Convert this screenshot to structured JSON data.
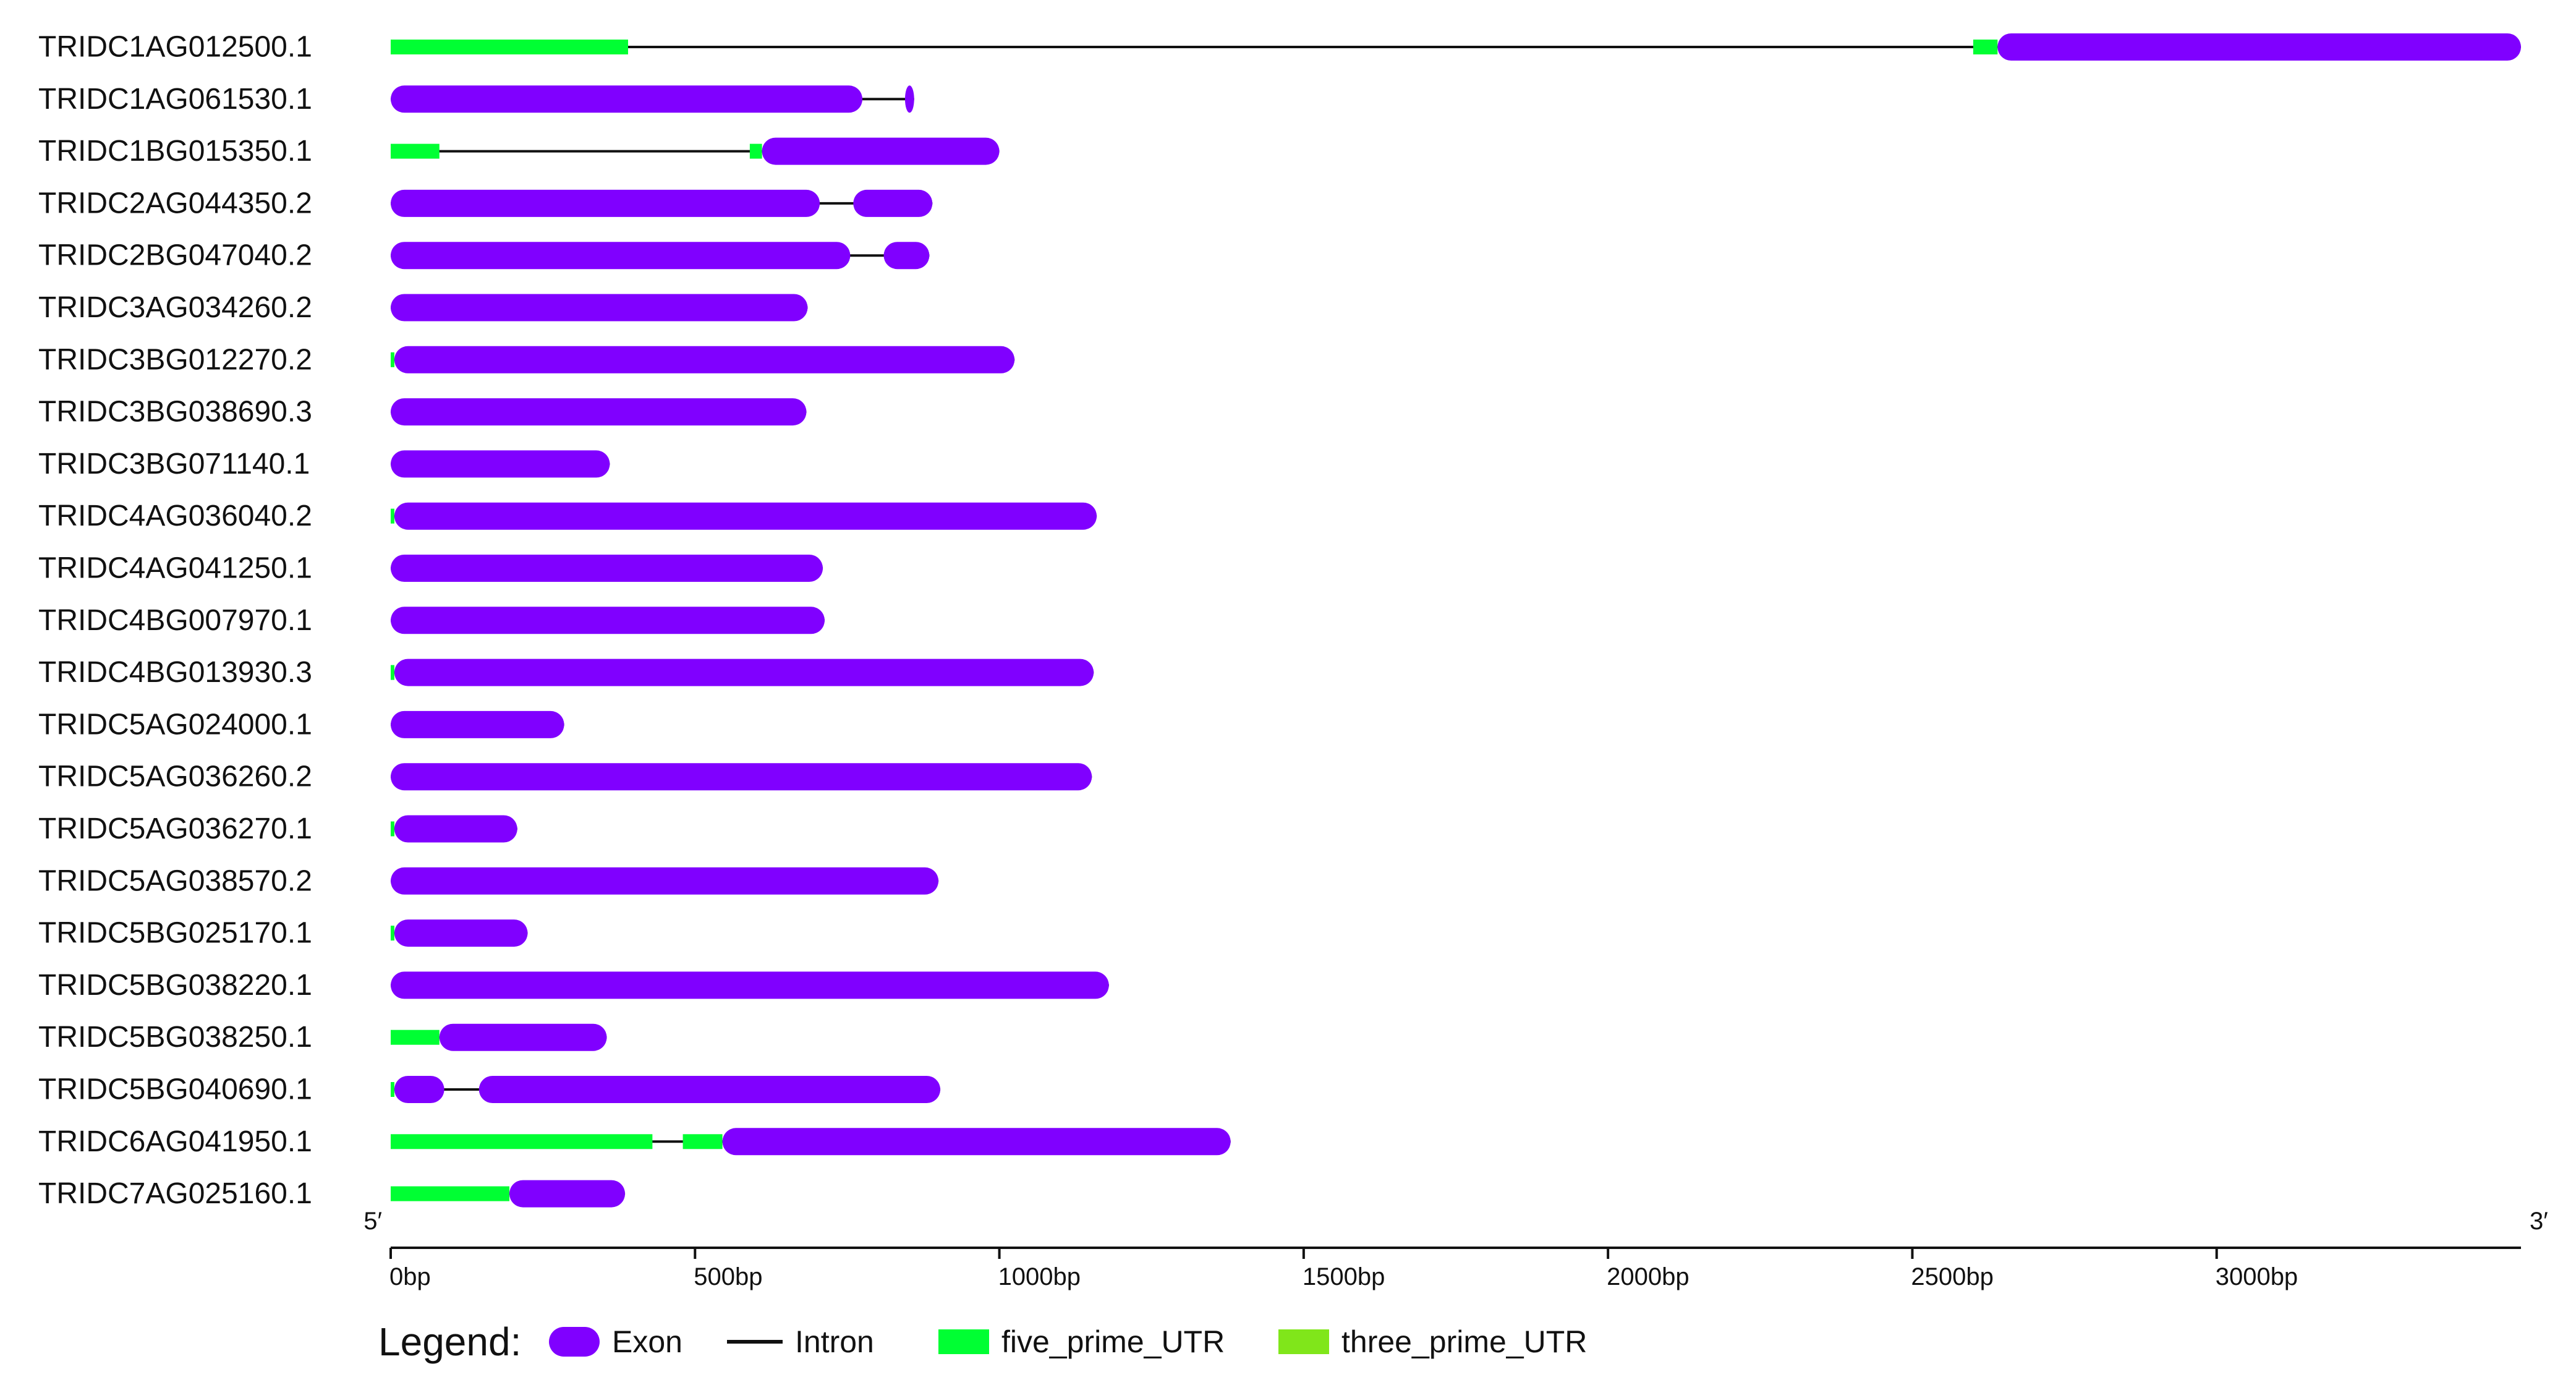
{
  "colors": {
    "exon": "#8000ff",
    "intron": "#111111",
    "five_prime_UTR": "#00ff33",
    "three_prime_UTR": "#80e61a",
    "axis": "#111111"
  },
  "axis": {
    "start_label": "5′",
    "end_label": "3′",
    "min_bp": 0,
    "max_bp": 3500,
    "ticks": [
      {
        "bp": 0,
        "label": "0bp"
      },
      {
        "bp": 500,
        "label": "500bp"
      },
      {
        "bp": 1000,
        "label": "1000bp"
      },
      {
        "bp": 1500,
        "label": "1500bp"
      },
      {
        "bp": 2000,
        "label": "2000bp"
      },
      {
        "bp": 2500,
        "label": "2500bp"
      },
      {
        "bp": 3000,
        "label": "3000bp"
      }
    ]
  },
  "legend": {
    "title": "Legend:",
    "items": [
      {
        "label": "Exon",
        "kind": "exon"
      },
      {
        "label": "Intron",
        "kind": "intron"
      },
      {
        "label": "five_prime_UTR",
        "kind": "five_prime_UTR"
      },
      {
        "label": "three_prime_UTR",
        "kind": "three_prime_UTR"
      }
    ]
  },
  "genes": [
    {
      "name": "TRIDC1AG012500.1",
      "length": 3500,
      "features": [
        {
          "type": "five_prime_UTR",
          "start": 0,
          "end": 390
        },
        {
          "type": "five_prime_UTR",
          "start": 2600,
          "end": 2640
        },
        {
          "type": "exon",
          "start": 2640,
          "end": 3500
        }
      ]
    },
    {
      "name": "TRIDC1AG061530.1",
      "length": 860,
      "features": [
        {
          "type": "exon",
          "start": 0,
          "end": 775
        },
        {
          "type": "exon",
          "start": 845,
          "end": 860
        }
      ]
    },
    {
      "name": "TRIDC1BG015350.1",
      "length": 1000,
      "features": [
        {
          "type": "five_prime_UTR",
          "start": 0,
          "end": 80
        },
        {
          "type": "five_prime_UTR",
          "start": 590,
          "end": 610
        },
        {
          "type": "exon",
          "start": 610,
          "end": 1000
        }
      ]
    },
    {
      "name": "TRIDC2AG044350.2",
      "length": 890,
      "features": [
        {
          "type": "exon",
          "start": 0,
          "end": 705
        },
        {
          "type": "exon",
          "start": 760,
          "end": 890
        }
      ]
    },
    {
      "name": "TRIDC2BG047040.2",
      "length": 885,
      "features": [
        {
          "type": "exon",
          "start": 0,
          "end": 755
        },
        {
          "type": "exon",
          "start": 810,
          "end": 885
        }
      ]
    },
    {
      "name": "TRIDC3AG034260.2",
      "length": 685,
      "features": [
        {
          "type": "exon",
          "start": 0,
          "end": 685
        }
      ]
    },
    {
      "name": "TRIDC3BG012270.2",
      "length": 1025,
      "features": [
        {
          "type": "five_prime_UTR",
          "start": 0,
          "end": 6
        },
        {
          "type": "exon",
          "start": 6,
          "end": 1025
        }
      ]
    },
    {
      "name": "TRIDC3BG038690.3",
      "length": 683,
      "features": [
        {
          "type": "exon",
          "start": 0,
          "end": 683
        }
      ]
    },
    {
      "name": "TRIDC3BG071140.1",
      "length": 360,
      "features": [
        {
          "type": "exon",
          "start": 0,
          "end": 360
        }
      ]
    },
    {
      "name": "TRIDC4AG036040.2",
      "length": 1160,
      "features": [
        {
          "type": "five_prime_UTR",
          "start": 0,
          "end": 6
        },
        {
          "type": "exon",
          "start": 6,
          "end": 1160
        }
      ]
    },
    {
      "name": "TRIDC4AG041250.1",
      "length": 710,
      "features": [
        {
          "type": "exon",
          "start": 0,
          "end": 710
        }
      ]
    },
    {
      "name": "TRIDC4BG007970.1",
      "length": 713,
      "features": [
        {
          "type": "exon",
          "start": 0,
          "end": 713
        }
      ]
    },
    {
      "name": "TRIDC4BG013930.3",
      "length": 1155,
      "features": [
        {
          "type": "five_prime_UTR",
          "start": 0,
          "end": 6
        },
        {
          "type": "exon",
          "start": 6,
          "end": 1155
        }
      ]
    },
    {
      "name": "TRIDC5AG024000.1",
      "length": 285,
      "features": [
        {
          "type": "exon",
          "start": 0,
          "end": 285
        }
      ]
    },
    {
      "name": "TRIDC5AG036260.2",
      "length": 1152,
      "features": [
        {
          "type": "exon",
          "start": 0,
          "end": 1152
        }
      ]
    },
    {
      "name": "TRIDC5AG036270.1",
      "length": 208,
      "features": [
        {
          "type": "five_prime_UTR",
          "start": 0,
          "end": 6
        },
        {
          "type": "exon",
          "start": 6,
          "end": 208
        }
      ]
    },
    {
      "name": "TRIDC5AG038570.2",
      "length": 900,
      "features": [
        {
          "type": "exon",
          "start": 0,
          "end": 900
        }
      ]
    },
    {
      "name": "TRIDC5BG025170.1",
      "length": 225,
      "features": [
        {
          "type": "five_prime_UTR",
          "start": 0,
          "end": 6
        },
        {
          "type": "exon",
          "start": 6,
          "end": 225
        }
      ]
    },
    {
      "name": "TRIDC5BG038220.1",
      "length": 1180,
      "features": [
        {
          "type": "exon",
          "start": 0,
          "end": 1180
        }
      ]
    },
    {
      "name": "TRIDC5BG038250.1",
      "length": 355,
      "features": [
        {
          "type": "five_prime_UTR",
          "start": 0,
          "end": 80
        },
        {
          "type": "exon",
          "start": 80,
          "end": 355
        }
      ]
    },
    {
      "name": "TRIDC5BG040690.1",
      "length": 903,
      "features": [
        {
          "type": "five_prime_UTR",
          "start": 0,
          "end": 6
        },
        {
          "type": "exon",
          "start": 6,
          "end": 88
        },
        {
          "type": "exon",
          "start": 145,
          "end": 903
        }
      ]
    },
    {
      "name": "TRIDC6AG041950.1",
      "length": 1380,
      "features": [
        {
          "type": "five_prime_UTR",
          "start": 0,
          "end": 430
        },
        {
          "type": "five_prime_UTR",
          "start": 480,
          "end": 545
        },
        {
          "type": "exon",
          "start": 545,
          "end": 1380
        }
      ]
    },
    {
      "name": "TRIDC7AG025160.1",
      "length": 385,
      "features": [
        {
          "type": "five_prime_UTR",
          "start": 0,
          "end": 195
        },
        {
          "type": "exon",
          "start": 195,
          "end": 385
        }
      ]
    }
  ]
}
